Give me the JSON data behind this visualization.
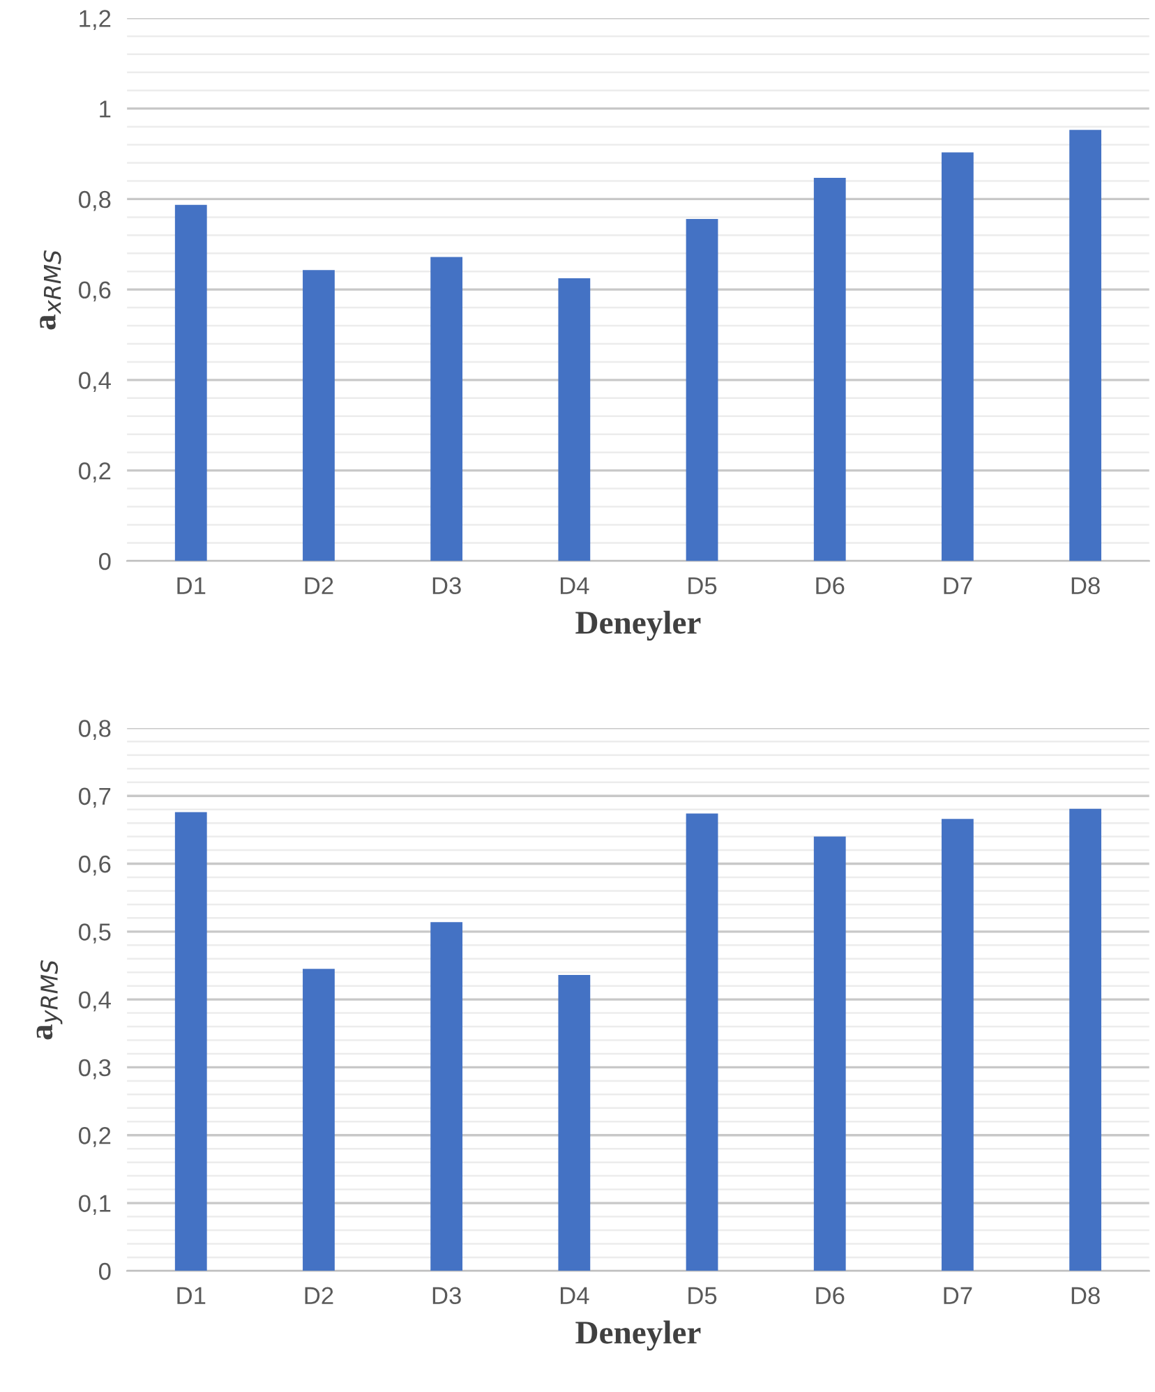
{
  "chart_data": [
    {
      "type": "bar",
      "xlabel": "Deneyler",
      "ylabel": "a$_{xRMS}$",
      "categories": [
        "D1",
        "D2",
        "D3",
        "D4",
        "D5",
        "D6",
        "D7",
        "D8"
      ],
      "values": [
        0.787,
        0.643,
        0.672,
        0.625,
        0.756,
        0.847,
        0.903,
        0.953
      ],
      "color": "#4472c4",
      "ylim": [
        0,
        1.2
      ],
      "grid": "y",
      "legend": false,
      "yticks": [
        {
          "value": 0,
          "label": "0"
        },
        {
          "value": 0.04,
          "label": null
        },
        {
          "value": 0.08,
          "label": null
        },
        {
          "value": 0.12,
          "label": null
        },
        {
          "value": 0.16,
          "label": null
        },
        {
          "value": 0.2,
          "label": "0,2"
        },
        {
          "value": 0.24,
          "label": null
        },
        {
          "value": 0.28,
          "label": null
        },
        {
          "value": 0.32,
          "label": null
        },
        {
          "value": 0.36,
          "label": null
        },
        {
          "value": 0.4,
          "label": "0,4"
        },
        {
          "value": 0.44,
          "label": null
        },
        {
          "value": 0.48,
          "label": null
        },
        {
          "value": 0.52,
          "label": null
        },
        {
          "value": 0.56,
          "label": null
        },
        {
          "value": 0.6,
          "label": "0,6"
        },
        {
          "value": 0.64,
          "label": null
        },
        {
          "value": 0.68,
          "label": null
        },
        {
          "value": 0.72,
          "label": null
        },
        {
          "value": 0.76,
          "label": null
        },
        {
          "value": 0.8,
          "label": "0,8"
        },
        {
          "value": 0.84,
          "label": null
        },
        {
          "value": 0.88,
          "label": null
        },
        {
          "value": 0.92,
          "label": null
        },
        {
          "value": 0.96,
          "label": null
        },
        {
          "value": 1,
          "label": "1"
        },
        {
          "value": 1.04,
          "label": null
        },
        {
          "value": 1.08,
          "label": null
        },
        {
          "value": 1.12,
          "label": null
        },
        {
          "value": 1.16,
          "label": null
        },
        {
          "value": 1.2,
          "label": "1,2"
        }
      ]
    },
    {
      "type": "bar",
      "xlabel": "Deneyler",
      "ylabel": "a$_{yRMS}$",
      "categories": [
        "D1",
        "D2",
        "D3",
        "D4",
        "D5",
        "D6",
        "D7",
        "D8"
      ],
      "values": [
        0.676,
        0.445,
        0.514,
        0.436,
        0.674,
        0.64,
        0.666,
        0.681
      ],
      "color": "#4472c4",
      "ylim": [
        0,
        0.8
      ],
      "grid": "y",
      "legend": false,
      "yticks": [
        {
          "value": 0,
          "label": "0"
        },
        {
          "value": 0.02,
          "label": null
        },
        {
          "value": 0.04,
          "label": null
        },
        {
          "value": 0.06,
          "label": null
        },
        {
          "value": 0.08,
          "label": null
        },
        {
          "value": 0.1,
          "label": "0,1"
        },
        {
          "value": 0.12,
          "label": null
        },
        {
          "value": 0.14,
          "label": null
        },
        {
          "value": 0.16,
          "label": null
        },
        {
          "value": 0.18,
          "label": null
        },
        {
          "value": 0.2,
          "label": "0,2"
        },
        {
          "value": 0.22,
          "label": null
        },
        {
          "value": 0.24,
          "label": null
        },
        {
          "value": 0.26,
          "label": null
        },
        {
          "value": 0.28,
          "label": null
        },
        {
          "value": 0.3,
          "label": "0,3"
        },
        {
          "value": 0.32,
          "label": null
        },
        {
          "value": 0.34,
          "label": null
        },
        {
          "value": 0.36,
          "label": null
        },
        {
          "value": 0.38,
          "label": null
        },
        {
          "value": 0.4,
          "label": "0,4"
        },
        {
          "value": 0.42,
          "label": null
        },
        {
          "value": 0.44,
          "label": null
        },
        {
          "value": 0.46,
          "label": null
        },
        {
          "value": 0.48,
          "label": null
        },
        {
          "value": 0.5,
          "label": "0,5"
        },
        {
          "value": 0.52,
          "label": null
        },
        {
          "value": 0.54,
          "label": null
        },
        {
          "value": 0.56,
          "label": null
        },
        {
          "value": 0.58,
          "label": null
        },
        {
          "value": 0.6,
          "label": "0,6"
        },
        {
          "value": 0.62,
          "label": null
        },
        {
          "value": 0.64,
          "label": null
        },
        {
          "value": 0.66,
          "label": null
        },
        {
          "value": 0.68,
          "label": null
        },
        {
          "value": 0.7,
          "label": "0,7"
        },
        {
          "value": 0.72,
          "label": null
        },
        {
          "value": 0.74,
          "label": null
        },
        {
          "value": 0.76,
          "label": null
        },
        {
          "value": 0.78,
          "label": null
        },
        {
          "value": 0.8,
          "label": "0,8"
        }
      ]
    }
  ]
}
